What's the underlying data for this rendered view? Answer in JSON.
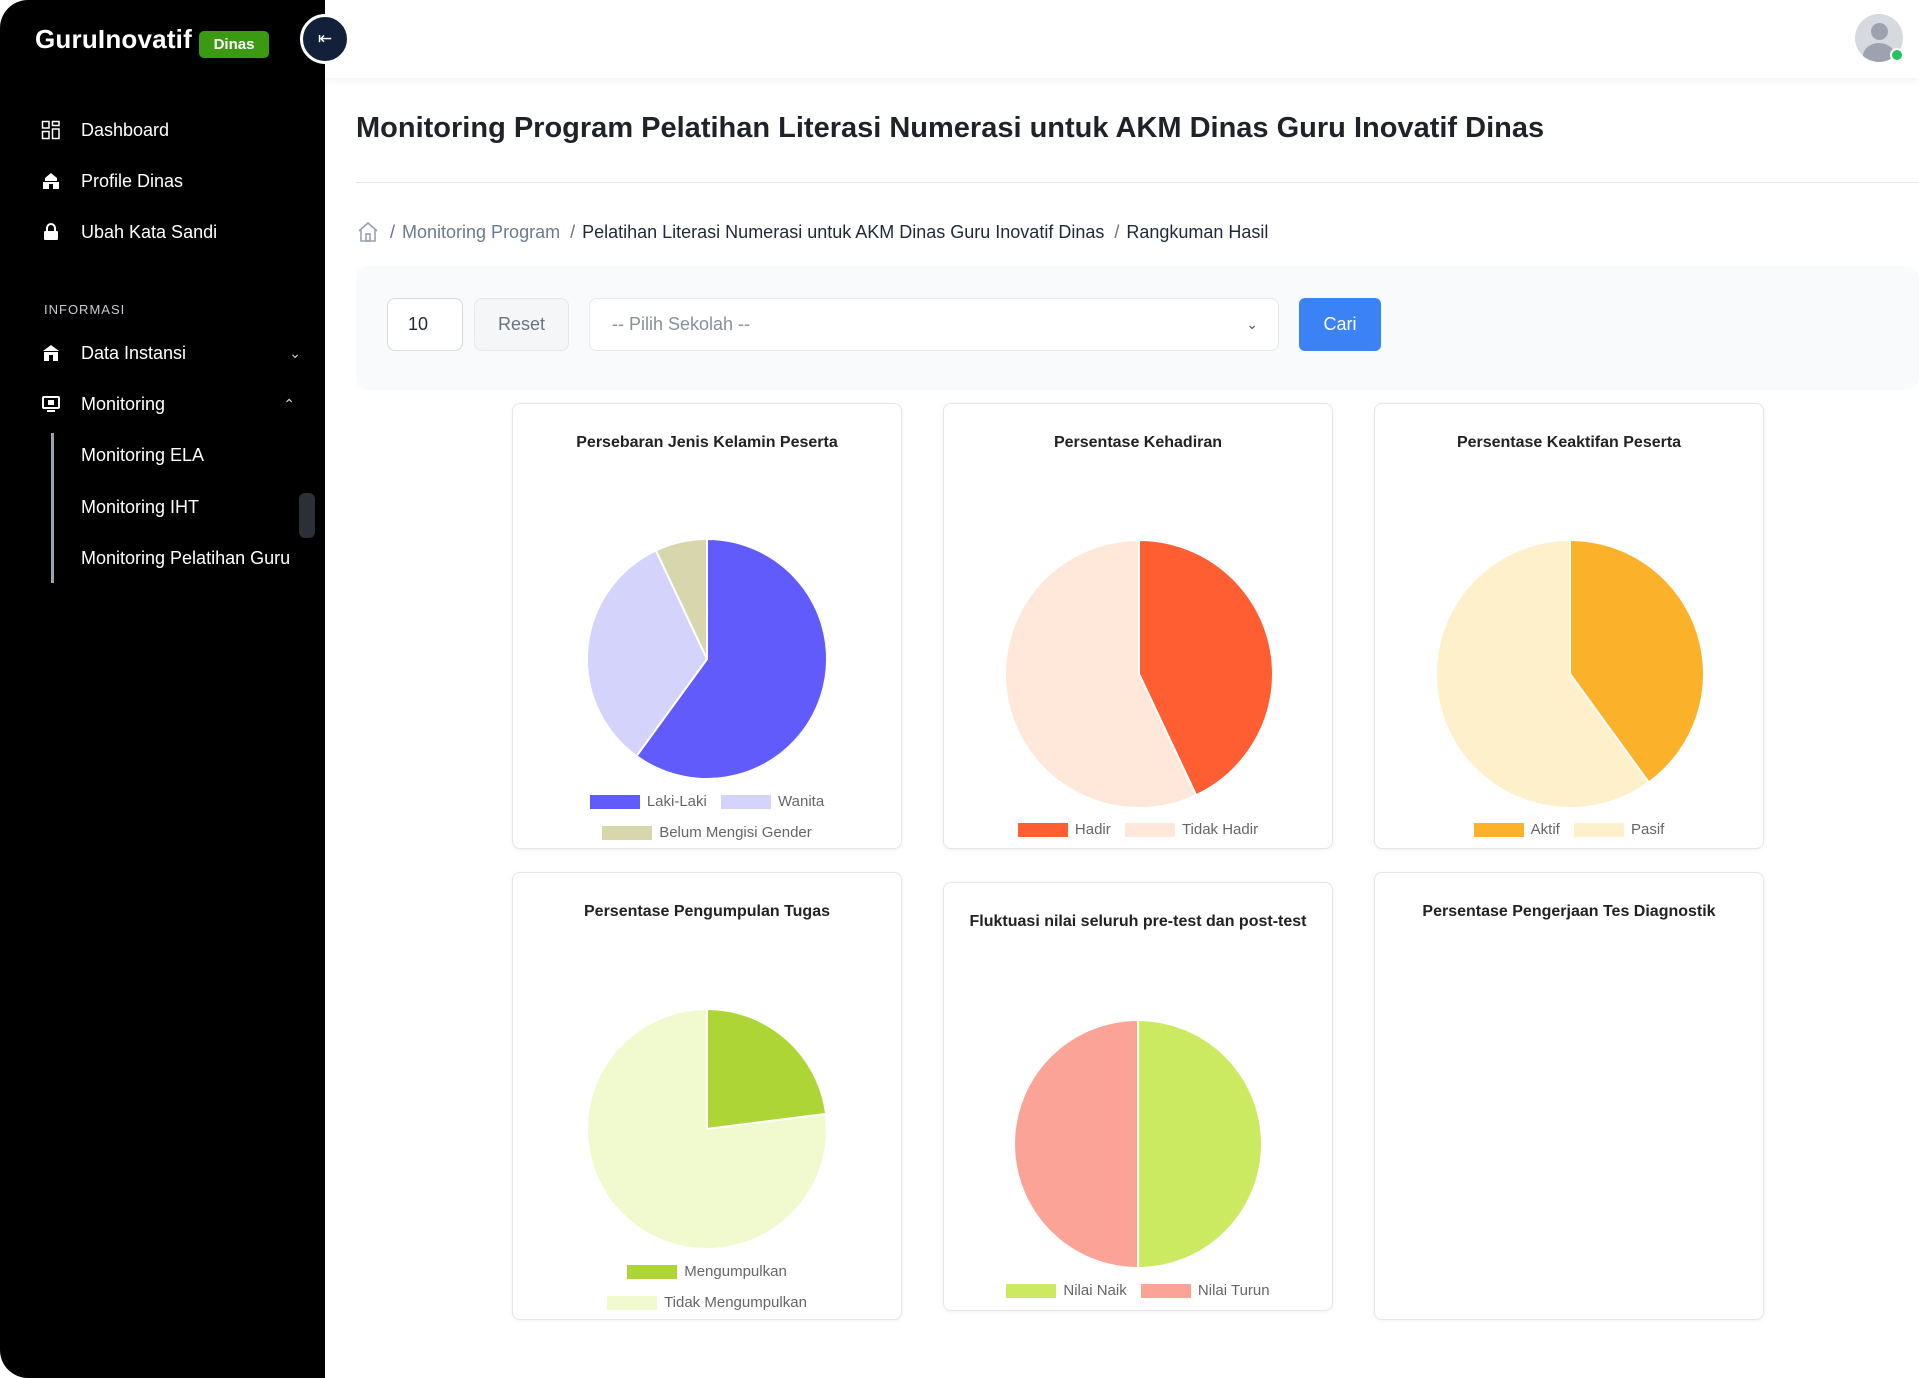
{
  "app": {
    "brand": "GuruInovatif",
    "badge": "Dinas",
    "collapse_icon": "arrow-left-bar-icon"
  },
  "sidebar": {
    "items": [
      {
        "label": "Dashboard",
        "icon": "grid-icon"
      },
      {
        "label": "Profile Dinas",
        "icon": "building-icon"
      },
      {
        "label": "Ubah Kata Sandi",
        "icon": "lock-icon"
      }
    ],
    "section_label": "INFORMASI",
    "groups": [
      {
        "label": "Data Instansi",
        "icon": "school-icon",
        "expanded": false
      },
      {
        "label": "Monitoring",
        "icon": "monitor-icon",
        "expanded": true
      }
    ],
    "monitoring_children": [
      {
        "label": "Monitoring ELA"
      },
      {
        "label": "Monitoring IHT"
      },
      {
        "label": "Monitoring Pelatihan Guru"
      }
    ]
  },
  "page": {
    "title": "Monitoring Program Pelatihan Literasi Numerasi untuk AKM Dinas Guru Inovatif Dinas"
  },
  "breadcrumb": {
    "items": [
      {
        "label": "Monitoring Program",
        "link": true
      },
      {
        "label": "Pelatihan Literasi Numerasi untuk AKM Dinas Guru Inovatif Dinas",
        "link": false
      },
      {
        "label": "Rangkuman Hasil",
        "link": false
      }
    ]
  },
  "filters": {
    "limit_value": "10",
    "reset_label": "Reset",
    "school_placeholder": "-- Pilih Sekolah --",
    "search_label": "Cari"
  },
  "chart_data": [
    {
      "type": "pie",
      "title": "Persebaran Jenis Kelamin Peserta",
      "labels": [
        "Laki-Laki",
        "Wanita",
        "Belum Mengisi Gender"
      ],
      "values": [
        60,
        33,
        7
      ],
      "colors": [
        "#625bfc",
        "#d4d3fc",
        "#d8d6ac"
      ]
    },
    {
      "type": "pie",
      "title": "Persentase Kehadiran",
      "labels": [
        "Hadir",
        "Tidak Hadir"
      ],
      "values": [
        43,
        57
      ],
      "colors": [
        "#ff5e33",
        "#ffe8d9"
      ]
    },
    {
      "type": "pie",
      "title": "Persentase Keaktifan Peserta",
      "labels": [
        "Aktif",
        "Pasif"
      ],
      "values": [
        40,
        60
      ],
      "colors": [
        "#fcb12a",
        "#fdf0ca"
      ]
    },
    {
      "type": "pie",
      "title": "Persentase Pengumpulan Tugas",
      "labels": [
        "Mengumpulkan",
        "Tidak Mengumpulkan"
      ],
      "values": [
        23,
        77
      ],
      "colors": [
        "#acd535",
        "#f1f9cf"
      ]
    },
    {
      "type": "pie",
      "title": "Fluktuasi nilai seluruh pre-test dan post-test",
      "labels": [
        "Nilai Naik",
        "Nilai Turun"
      ],
      "values": [
        50,
        50
      ],
      "colors": [
        "#cbea62",
        "#fca398"
      ]
    },
    {
      "type": "pie",
      "title": "Persentase Pengerjaan Tes Diagnostik",
      "labels": [],
      "values": [],
      "colors": []
    }
  ]
}
